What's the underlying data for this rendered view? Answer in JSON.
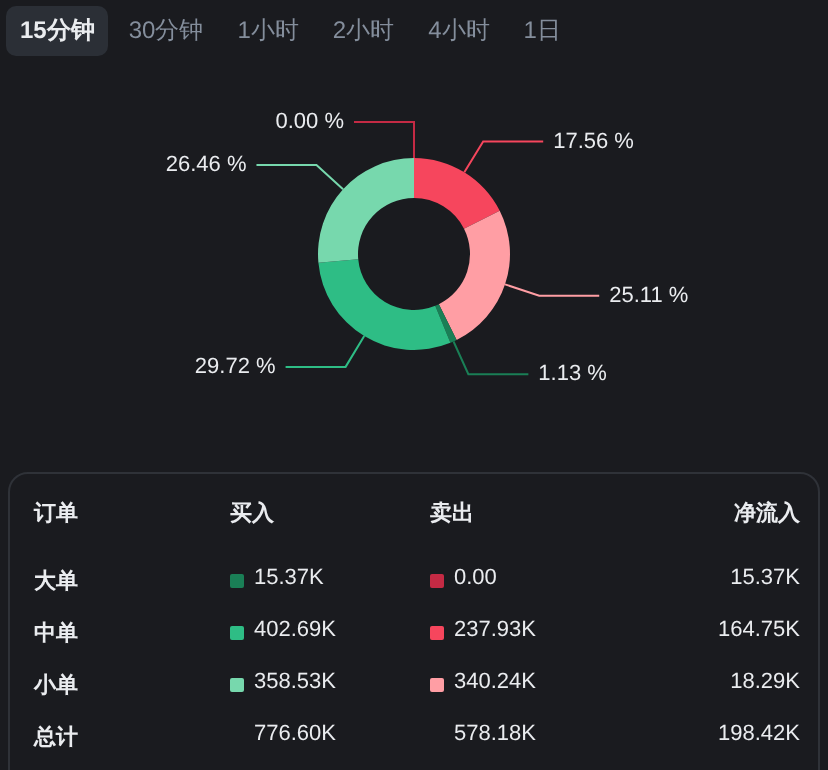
{
  "chart_data": [
    {
      "type": "donut",
      "categories": [
        null,
        null,
        null,
        null,
        null,
        null
      ],
      "values": [
        0.0,
        17.56,
        25.11,
        1.13,
        29.72,
        26.46
      ],
      "colors": [
        "#c42a44",
        "#f6465d",
        "#ff9ea4",
        "#1a7f56",
        "#2ebd85",
        "#77d8ad"
      ],
      "value_labels": [
        "0.00 %",
        "17.56 %",
        "25.11 %",
        "1.13 %",
        "29.72 %",
        "26.46 %"
      ],
      "annotations": [
        "15分钟",
        "30分钟",
        "1小时",
        "2小时",
        "4小时",
        "1日"
      ]
    },
    {
      "type": "other",
      "annotations": [
        "订单",
        "买入",
        "卖出",
        "净流入",
        "大单",
        "15.37K",
        "0.00",
        "15.37K",
        "中单",
        "402.69K",
        "237.93K",
        "164.75K",
        "小单",
        "358.53K",
        "340.24K",
        "18.29K",
        "总计",
        "776.60K",
        "578.18K",
        "198.42K"
      ]
    }
  ]
}
